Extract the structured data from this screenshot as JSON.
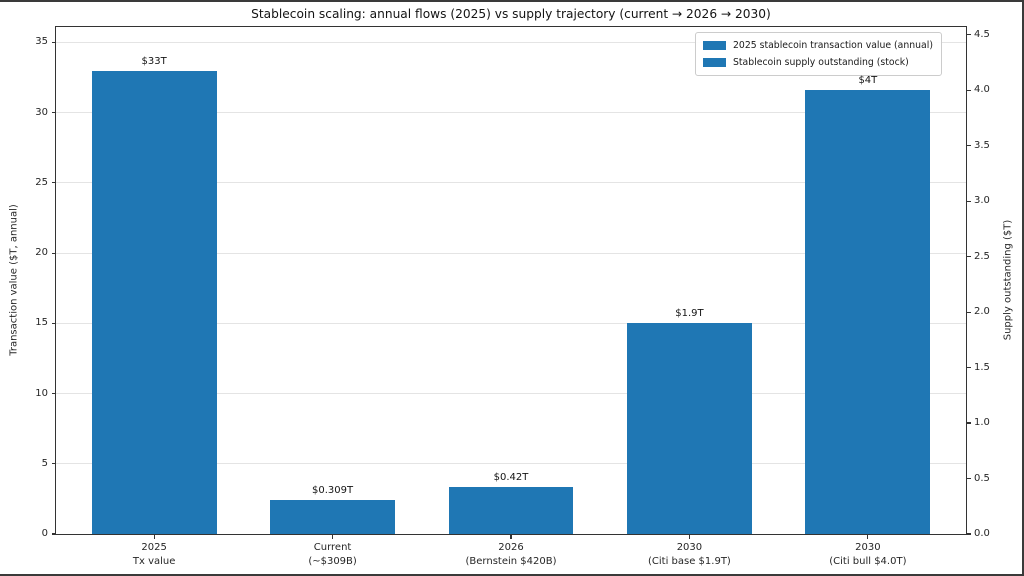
{
  "chart_data": {
    "type": "bar",
    "title": "Stablecoin scaling: annual flows (2025) vs supply trajectory (current → 2026 → 2030)",
    "bar_color": "#1f77b4",
    "grid": "horizontal gridlines at left-axis ticks",
    "grid_color": "#e4e4e4",
    "categories": [
      "2025\nTx value",
      "Current\n(~$309B)",
      "2026\n(Bernstein $420B)",
      "2030\n(Citi base $1.9T)",
      "2030\n(Citi bull $4.0T)"
    ],
    "bars": [
      {
        "category": [
          "2025",
          "Tx value"
        ],
        "value": 33.0,
        "value_label": "$33T",
        "axis": "left"
      },
      {
        "category": [
          "Current",
          "(~$309B)"
        ],
        "value": 0.309,
        "value_label": "$0.309T",
        "axis": "right"
      },
      {
        "category": [
          "2026",
          "(Bernstein $420B)"
        ],
        "value": 0.42,
        "value_label": "$0.42T",
        "axis": "right"
      },
      {
        "category": [
          "2030",
          "(Citi base $1.9T)"
        ],
        "value": 1.9,
        "value_label": "$1.9T",
        "axis": "right"
      },
      {
        "category": [
          "2030",
          "(Citi bull $4.0T)"
        ],
        "value": 4.0,
        "value_label": "$4T",
        "axis": "right"
      }
    ],
    "left_axis": {
      "label": "Transaction value ($T, annual)",
      "tick_values": [
        0,
        5,
        10,
        15,
        20,
        25,
        30,
        35
      ],
      "tick_labels": [
        "0",
        "5",
        "10",
        "15",
        "20",
        "25",
        "30",
        "35"
      ],
      "ylim": [
        0,
        36.1
      ]
    },
    "right_axis": {
      "label": "Supply outstanding ($T)",
      "tick_values": [
        0,
        0.5,
        1.0,
        1.5,
        2.0,
        2.5,
        3.0,
        3.5,
        4.0,
        4.5
      ],
      "tick_labels": [
        "0.0",
        "0.5",
        "1.0",
        "1.5",
        "2.0",
        "2.5",
        "3.0",
        "3.5",
        "4.0",
        "4.5"
      ],
      "ylim": [
        0,
        4.57
      ]
    },
    "legend": {
      "position": "upper right",
      "entries": [
        "2025 stablecoin transaction value (annual)",
        "Stablecoin supply outstanding (stock)"
      ]
    }
  }
}
